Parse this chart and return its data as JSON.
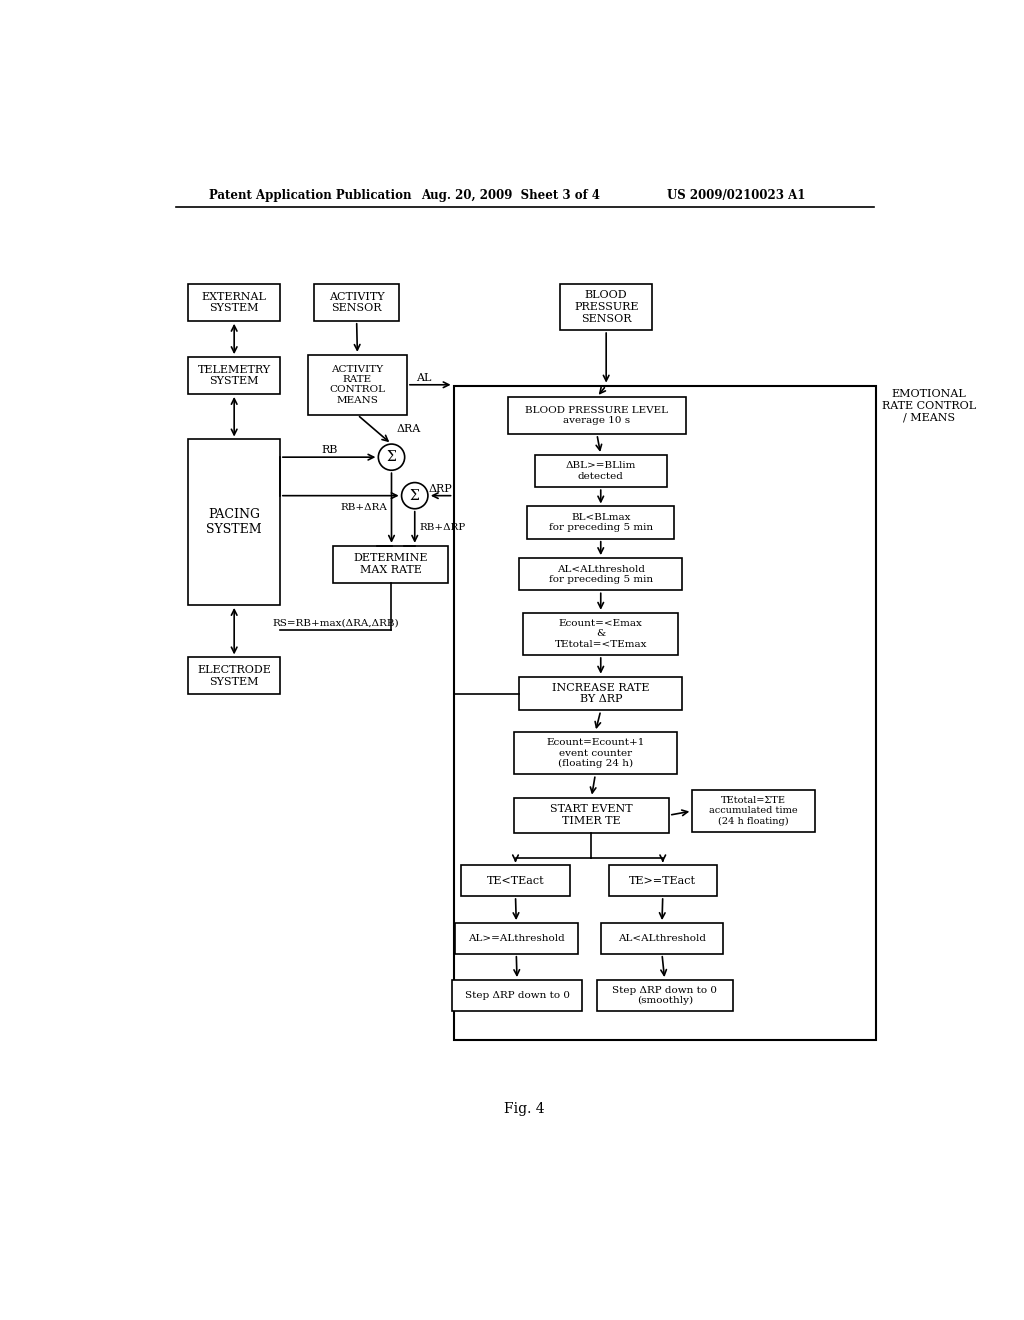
{
  "header_left": "Patent Application Publication",
  "header_mid": "Aug. 20, 2009  Sheet 3 of 4",
  "header_right": "US 2009/0210023 A1",
  "footer_label": "Fig. 4",
  "bg_color": "#ffffff"
}
